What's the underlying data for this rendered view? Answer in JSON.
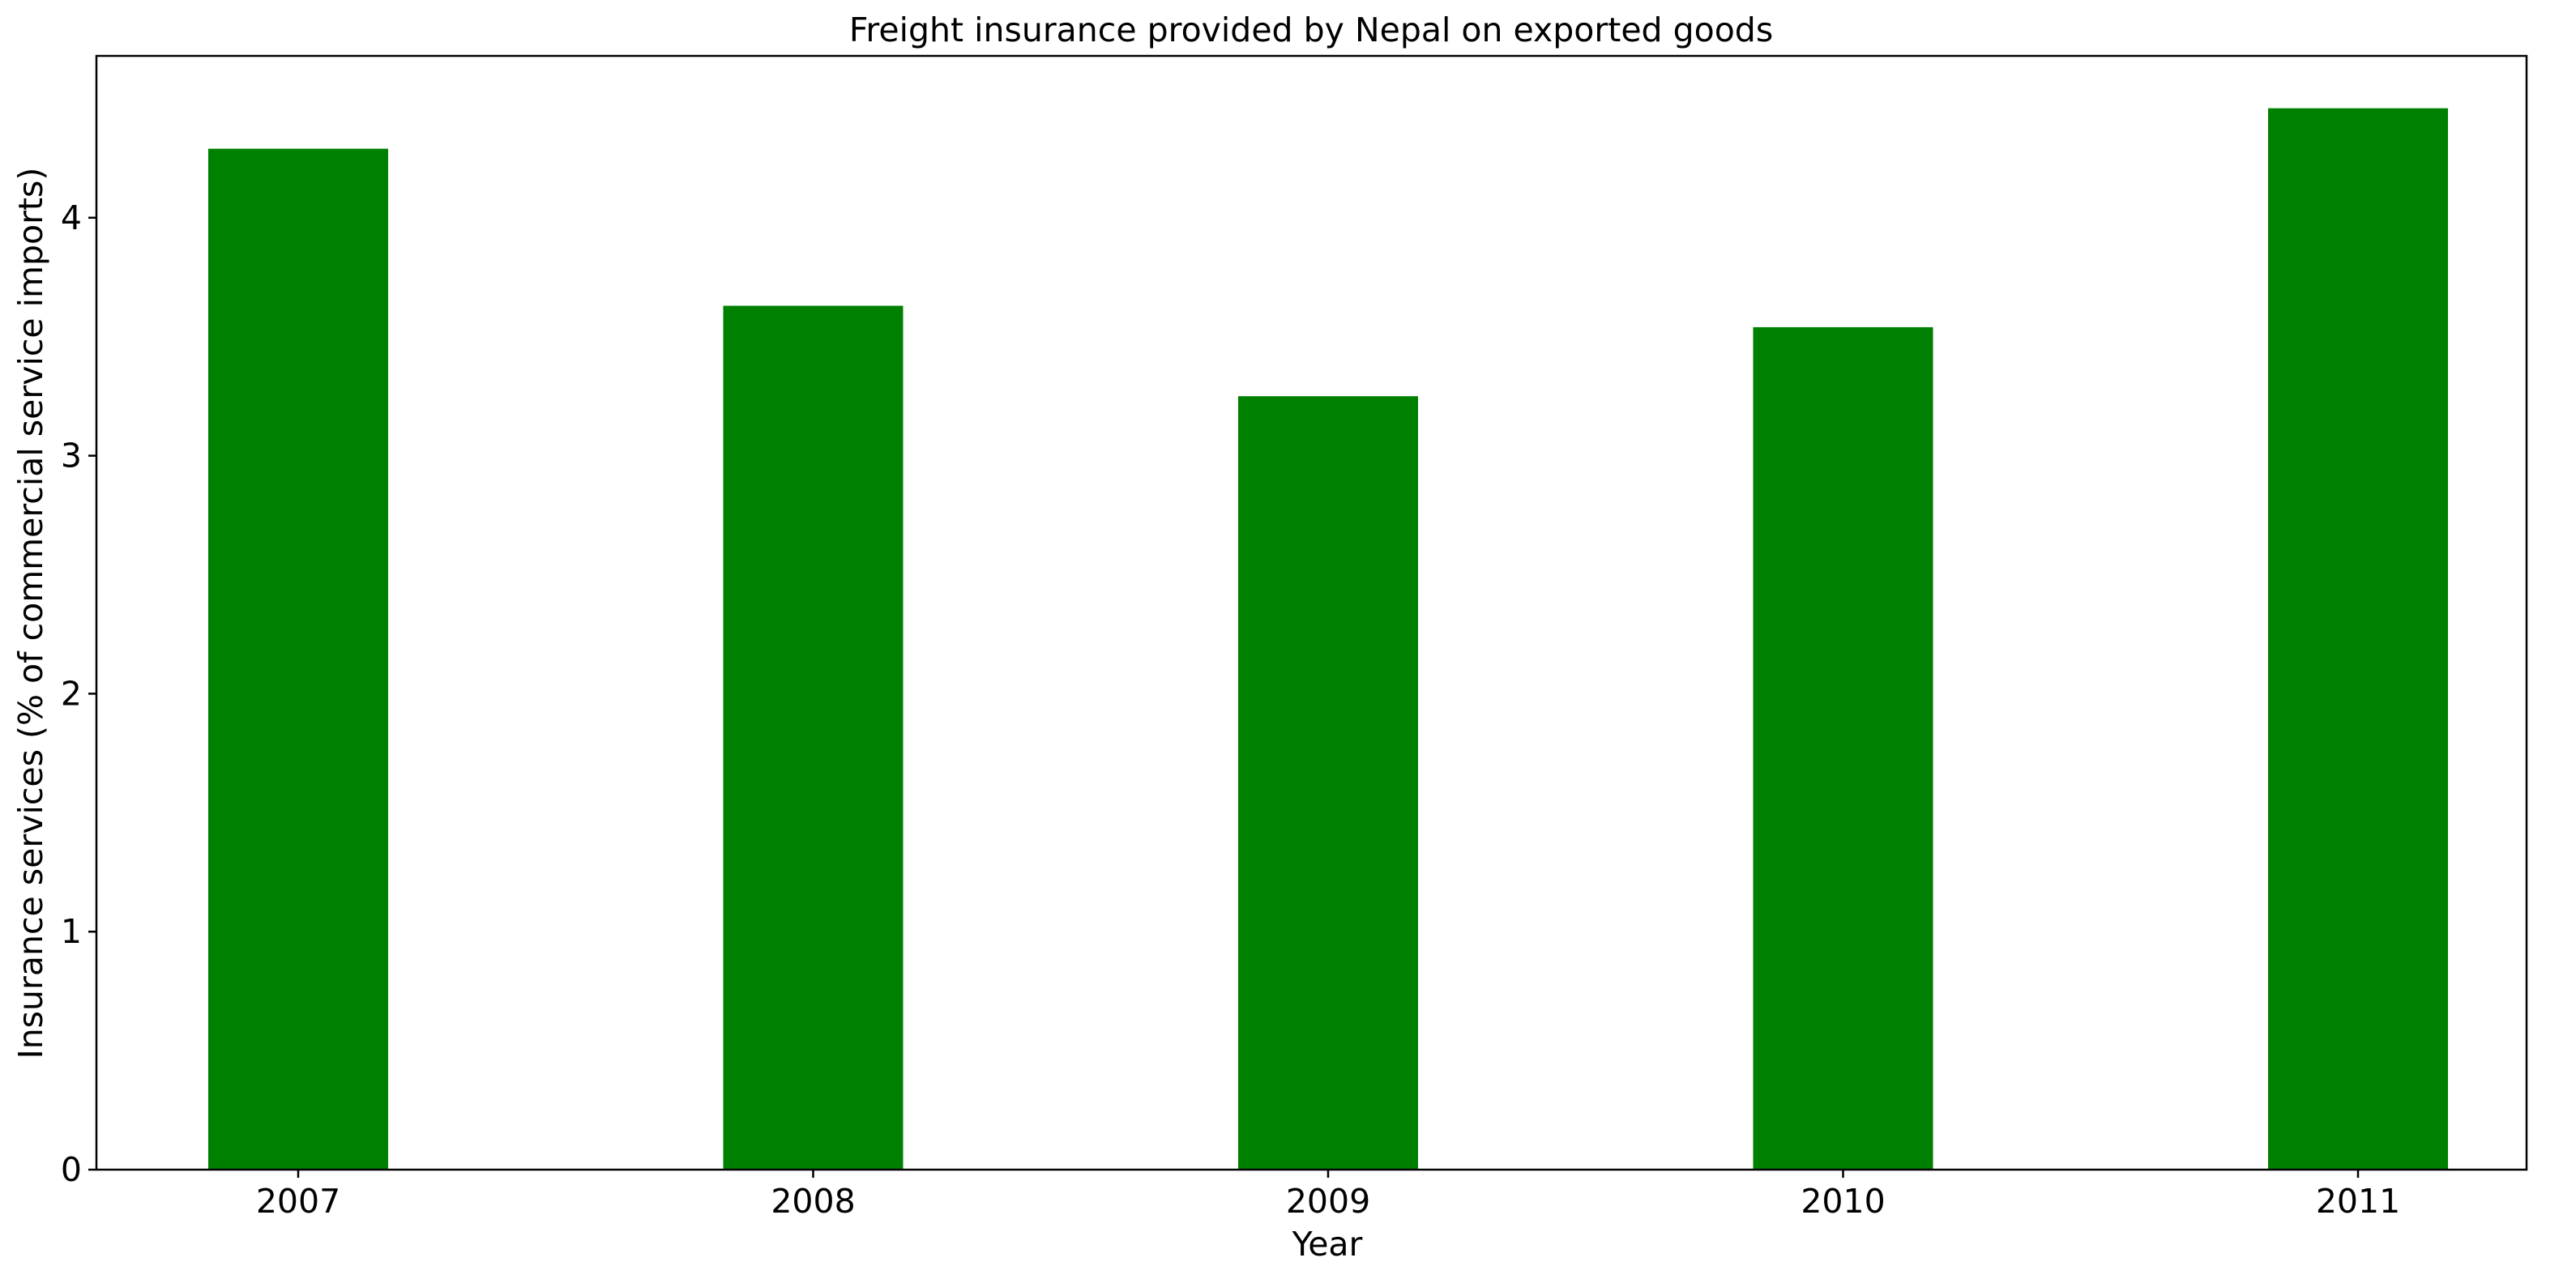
{
  "chart_data": {
    "type": "bar",
    "title": "Freight insurance provided by Nepal on exported goods",
    "xlabel": "Year",
    "ylabel": "Insurance services (% of commercial service imports)",
    "categories": [
      "2007",
      "2008",
      "2009",
      "2010",
      "2011"
    ],
    "values": [
      4.29,
      3.63,
      3.25,
      3.54,
      4.46
    ],
    "ylim": [
      0,
      4.68
    ],
    "yticks": [
      0,
      1,
      2,
      3,
      4
    ],
    "grid": false,
    "legend": "none",
    "bar_color": "#008000"
  }
}
